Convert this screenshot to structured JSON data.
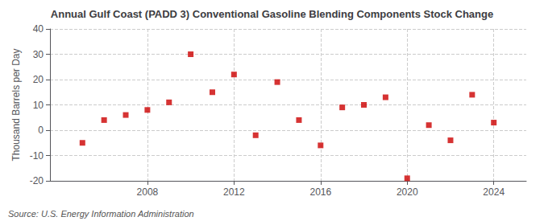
{
  "chart_data": {
    "type": "scatter",
    "title": "Annual Gulf Coast (PADD 3) Conventional Gasoline Blending Components Stock Change",
    "ylabel": "Thousand Barrels per Day",
    "annotations": [
      "Source: U.S. Energy Information Administration"
    ],
    "x": [
      2005,
      2006,
      2007,
      2008,
      2009,
      2010,
      2011,
      2012,
      2013,
      2014,
      2015,
      2016,
      2017,
      2018,
      2019,
      2020,
      2021,
      2022,
      2023,
      2024
    ],
    "values": [
      -5,
      4,
      6,
      8,
      11,
      30,
      15,
      22,
      -2,
      19,
      4,
      -6,
      9,
      10,
      13,
      -19,
      2,
      -4,
      14,
      3
    ],
    "color": "#cc0000",
    "marker": "square",
    "xlim": [
      2003.5,
      2025.5
    ],
    "xticks": [
      2008,
      2012,
      2016,
      2020,
      2024
    ],
    "ylim": [
      -20,
      40
    ],
    "yticks": [
      -20,
      -10,
      0,
      10,
      20,
      30,
      40
    ],
    "grid": true
  }
}
